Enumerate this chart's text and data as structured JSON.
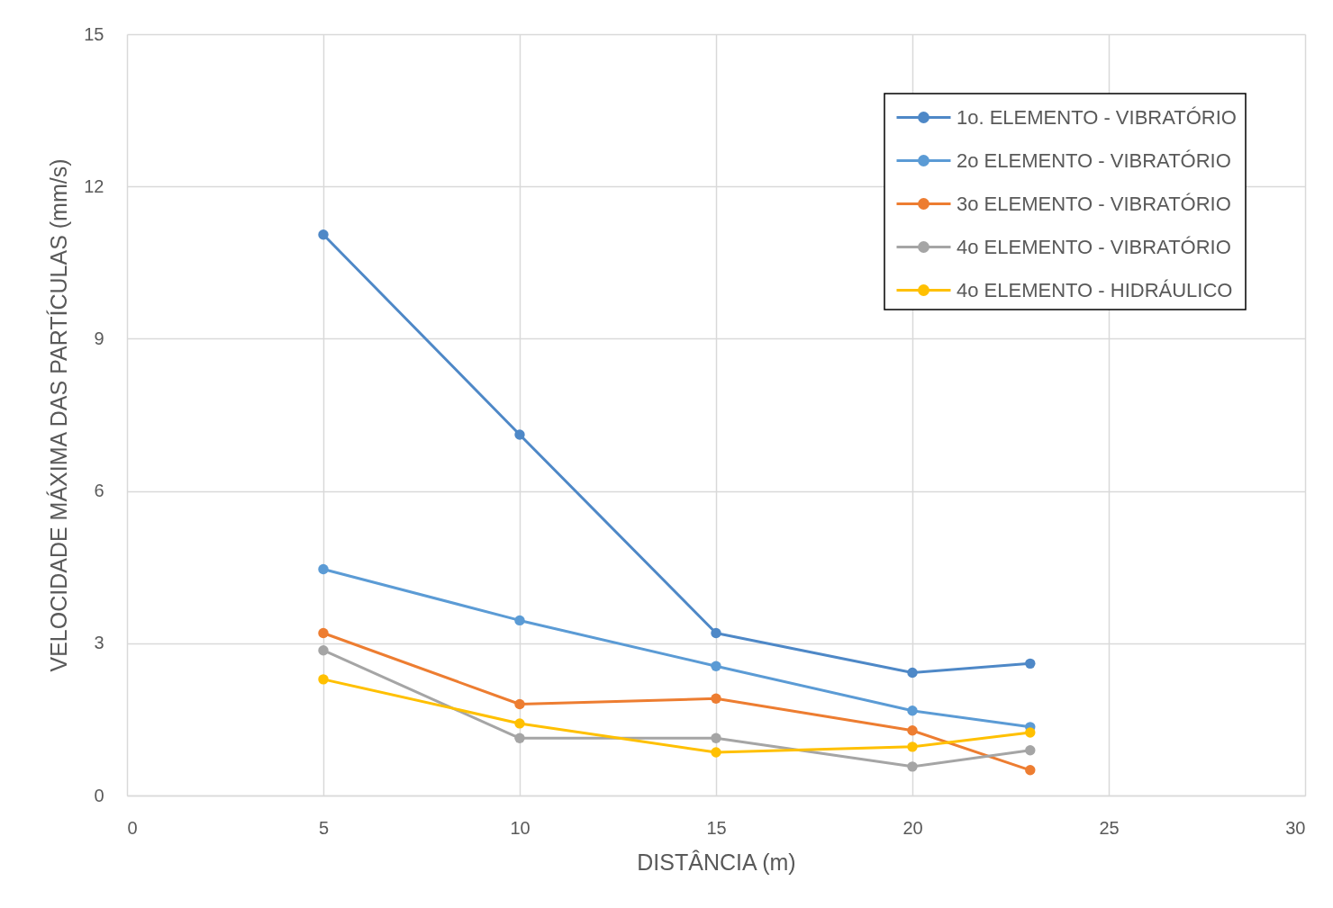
{
  "chart_data": {
    "type": "line",
    "xlabel": "DISTÂNCIA (m)",
    "ylabel": "VELOCIDADE MÁXIMA DAS PARTÍCULAS (mm/s)",
    "x": [
      5,
      10,
      15,
      20,
      23
    ],
    "series": [
      {
        "name": "1o. ELEMENTO - VIBRATÓRIO",
        "color": "#4e88c7",
        "values": [
          11.05,
          7.11,
          3.2,
          2.42,
          2.6
        ]
      },
      {
        "name": "2o ELEMENTO - VIBRATÓRIO",
        "color": "#5b9bd5",
        "values": [
          4.46,
          3.45,
          2.55,
          1.67,
          1.35
        ]
      },
      {
        "name": "3o ELEMENTO - VIBRATÓRIO",
        "color": "#ed7d31",
        "values": [
          3.2,
          1.8,
          1.91,
          1.28,
          0.5
        ]
      },
      {
        "name": "4o ELEMENTO - VIBRATÓRIO",
        "color": "#a5a5a5",
        "values": [
          2.86,
          1.13,
          1.13,
          0.57,
          0.89
        ]
      },
      {
        "name": "4o ELEMENTO - HIDRÁULICO",
        "color": "#ffc000",
        "values": [
          2.29,
          1.42,
          0.85,
          0.96,
          1.24
        ]
      }
    ],
    "xlim": [
      0,
      30
    ],
    "xticks": [
      0,
      5,
      10,
      15,
      20,
      25,
      30
    ],
    "ylim": [
      0,
      15
    ],
    "yticks": [
      0,
      3,
      6,
      9,
      12,
      15
    ],
    "grid": true,
    "legend": "top right",
    "marker": "circle",
    "line_style": "solid"
  }
}
